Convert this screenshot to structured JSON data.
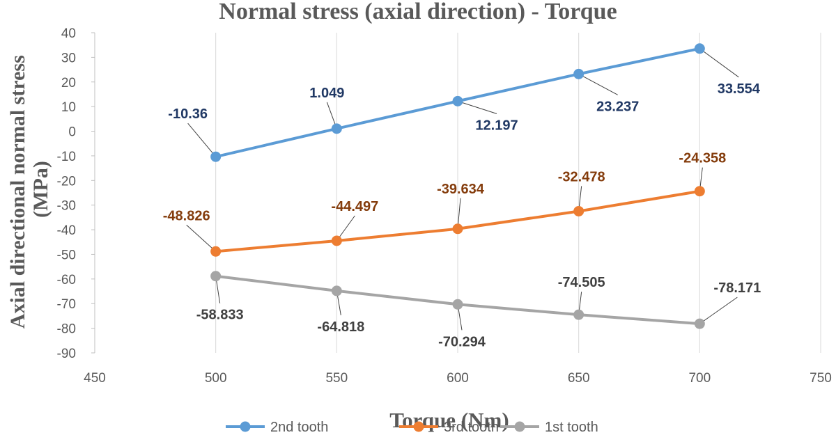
{
  "chart_data": {
    "type": "line",
    "title": "Normal stress (axial direction) - Torque",
    "xlabel": "Torque (Nm)",
    "ylabel_lines": [
      "Axial directional normal stress",
      "(MPa)"
    ],
    "xlim": [
      450,
      750
    ],
    "ylim": [
      -90,
      40
    ],
    "xticks": [
      450,
      500,
      550,
      600,
      650,
      700,
      750
    ],
    "yticks": [
      40,
      30,
      20,
      10,
      0,
      -10,
      -20,
      -30,
      -40,
      -50,
      -60,
      -70,
      -80,
      -90
    ],
    "x": [
      500,
      550,
      600,
      650,
      700
    ],
    "grid": "vertical",
    "legend_position": "bottom",
    "series": [
      {
        "name": "2nd tooth",
        "color": "#5b9bd5",
        "label_color": "#203864",
        "values": [
          -10.36,
          1.049,
          12.197,
          23.237,
          33.554
        ],
        "labels": [
          "-10.36",
          "1.049",
          "12.197",
          "23.237",
          "33.554"
        ]
      },
      {
        "name": "3rd tooth",
        "color": "#ed7d31",
        "label_color": "#843c0c",
        "values": [
          -48.826,
          -44.497,
          -39.634,
          -32.478,
          -24.358
        ],
        "labels": [
          "-48.826",
          "-44.497",
          "-39.634",
          "-32.478",
          "-24.358"
        ]
      },
      {
        "name": "1st tooth",
        "color": "#a5a5a5",
        "label_color": "#404040",
        "values": [
          -58.833,
          -64.818,
          -70.294,
          -74.505,
          -78.171
        ],
        "labels": [
          "-58.833",
          "-64.818",
          "-70.294",
          "-74.505",
          "-78.171"
        ]
      }
    ]
  }
}
